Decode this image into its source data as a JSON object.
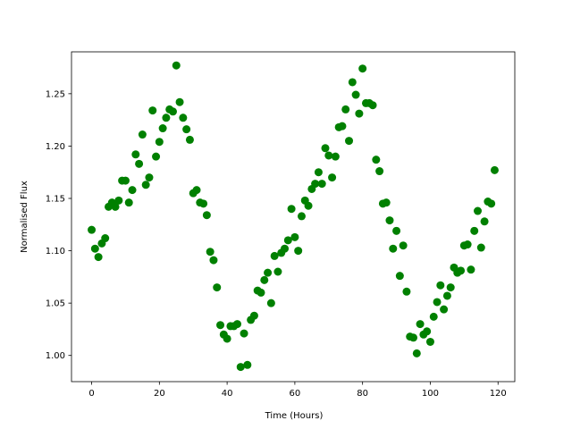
{
  "chart_data": {
    "type": "scatter",
    "x_label": "Time (Hours)",
    "y_label": "Normalised Flux",
    "color": "#008000",
    "x": [
      0,
      1,
      2,
      3,
      4,
      5,
      6,
      7,
      8,
      9,
      10,
      11,
      12,
      13,
      14,
      15,
      16,
      17,
      18,
      19,
      20,
      21,
      22,
      23,
      24,
      25,
      26,
      27,
      28,
      29,
      30,
      31,
      32,
      33,
      34,
      35,
      36,
      37,
      38,
      39,
      40,
      41,
      42,
      43,
      44,
      45,
      46,
      47,
      48,
      49,
      50,
      51,
      52,
      53,
      54,
      55,
      56,
      57,
      58,
      59,
      60,
      61,
      62,
      63,
      64,
      65,
      66,
      67,
      68,
      69,
      70,
      71,
      72,
      73,
      74,
      75,
      76,
      77,
      78,
      79,
      80,
      81,
      82,
      83,
      84,
      85,
      86,
      87,
      88,
      89,
      90,
      91,
      92,
      93,
      94,
      95,
      96,
      97,
      98,
      99,
      100,
      101,
      102,
      103,
      104,
      105,
      106,
      107,
      108,
      109,
      110,
      111,
      112,
      113,
      114,
      115,
      116,
      117,
      118,
      119
    ],
    "values": [
      1.12,
      1.102,
      1.094,
      1.107,
      1.112,
      1.142,
      1.146,
      1.142,
      1.148,
      1.167,
      1.167,
      1.146,
      1.158,
      1.192,
      1.183,
      1.211,
      1.163,
      1.17,
      1.234,
      1.19,
      1.204,
      1.217,
      1.227,
      1.235,
      1.233,
      1.277,
      1.242,
      1.227,
      1.216,
      1.206,
      1.155,
      1.158,
      1.146,
      1.145,
      1.134,
      1.099,
      1.091,
      1.065,
      1.029,
      1.02,
      1.016,
      1.028,
      1.028,
      1.03,
      0.989,
      1.021,
      0.991,
      1.034,
      1.038,
      1.062,
      1.06,
      1.072,
      1.079,
      1.05,
      1.095,
      1.08,
      1.098,
      1.102,
      1.11,
      1.14,
      1.113,
      1.1,
      1.133,
      1.148,
      1.143,
      1.159,
      1.164,
      1.175,
      1.164,
      1.198,
      1.191,
      1.17,
      1.19,
      1.218,
      1.219,
      1.235,
      1.205,
      1.261,
      1.249,
      1.231,
      1.274,
      1.241,
      1.241,
      1.239,
      1.187,
      1.176,
      1.145,
      1.146,
      1.129,
      1.102,
      1.119,
      1.076,
      1.105,
      1.061,
      1.018,
      1.017,
      1.002,
      1.03,
      1.02,
      1.023,
      1.013,
      1.037,
      1.051,
      1.067,
      1.044,
      1.057,
      1.065,
      1.084,
      1.079,
      1.081,
      1.105,
      1.106,
      1.082,
      1.119,
      1.138,
      1.103,
      1.128,
      1.147,
      1.145,
      1.177
    ],
    "xlim": [
      -5.95,
      124.95
    ],
    "ylim": [
      0.975,
      1.29
    ],
    "xticks": [
      0,
      20,
      40,
      60,
      80,
      100,
      120
    ],
    "yticks": [
      {
        "value": 1.0,
        "label": "1.00"
      },
      1.05,
      {
        "value": 1.1,
        "label": "1.10"
      },
      1.15,
      {
        "value": 1.2,
        "label": "1.20"
      },
      1.25
    ]
  }
}
